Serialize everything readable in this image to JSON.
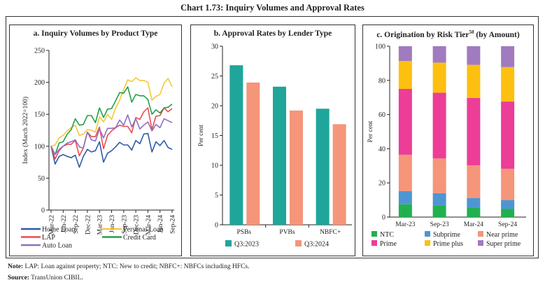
{
  "title": "Chart 1.73: Inquiry Volumes and Approval Rates",
  "note": {
    "label": "Note:",
    "text": " LAP: Loan against property; NTC: New to credit; NBFC+: NBFCs including HFCs."
  },
  "source": {
    "label": "Source:",
    "text": " TransUnion CIBIL."
  },
  "chart_data": [
    {
      "type": "line",
      "title": "a. Inquiry Volumes by Product Type",
      "xlabel": "",
      "ylabel": "Index (March 2022=100)",
      "ylim": [
        0,
        250
      ],
      "yticks": [
        0,
        50,
        100,
        150,
        200,
        250
      ],
      "x": [
        "Mar-22",
        "Apr-22",
        "May-22",
        "Jun-22",
        "Jul-22",
        "Aug-22",
        "Sep-22",
        "Oct-22",
        "Nov-22",
        "Dec-22",
        "Jan-23",
        "Feb-23",
        "Mar-23",
        "Apr-23",
        "May-23",
        "Jun-23",
        "Jul-23",
        "Aug-23",
        "Sep-23",
        "Oct-23",
        "Nov-23",
        "Dec-23",
        "Jan-24",
        "Feb-24",
        "Mar-24",
        "Apr-24",
        "May-24",
        "Jun-24",
        "Jul-24",
        "Aug-24",
        "Sep-24"
      ],
      "xtick_labels": [
        "Mar-22",
        "Jun-22",
        "Sep-22",
        "Dec-22",
        "Mar-23",
        "Jun-23",
        "Sep-23",
        "Dec-23",
        "Mar-24",
        "Jun-24",
        "Sep-24"
      ],
      "legend_position": "bottom",
      "series": [
        {
          "name": "Home Loan",
          "color": "#2e5aa8",
          "values": [
            100,
            72,
            84,
            87,
            84,
            82,
            86,
            67,
            84,
            95,
            91,
            93,
            107,
            75,
            89,
            93,
            99,
            106,
            102,
            102,
            94,
            109,
            104,
            119,
            120,
            91,
            107,
            101,
            109,
            98,
            95
          ]
        },
        {
          "name": "Personal Loan",
          "color": "#f5c83a",
          "values": [
            100,
            102,
            113,
            117,
            124,
            129,
            133,
            117,
            119,
            126,
            125,
            122,
            146,
            138,
            150,
            142,
            160,
            172,
            189,
            204,
            201,
            207,
            203,
            203,
            200,
            172,
            178,
            181,
            199,
            206,
            193
          ]
        },
        {
          "name": "LAP",
          "color": "#ee4a4f",
          "values": [
            100,
            80,
            93,
            100,
            103,
            103,
            109,
            85,
            97,
            122,
            115,
            115,
            130,
            96,
            117,
            124,
            129,
            133,
            131,
            131,
            121,
            145,
            142,
            154,
            160,
            126,
            147,
            148,
            160,
            154,
            159
          ]
        },
        {
          "name": "Credit Card",
          "color": "#22a04a",
          "values": [
            100,
            87,
            105,
            107,
            119,
            126,
            143,
            133,
            134,
            148,
            148,
            137,
            160,
            145,
            158,
            159,
            171,
            184,
            183,
            193,
            169,
            181,
            179,
            179,
            173,
            150,
            157,
            152,
            160,
            161,
            166
          ]
        },
        {
          "name": "Auto Loan",
          "color": "#8f6fbf",
          "values": [
            100,
            87,
            95,
            100,
            105,
            107,
            110,
            99,
            97,
            122,
            110,
            108,
            127,
            113,
            128,
            128,
            129,
            141,
            133,
            149,
            130,
            143,
            127,
            133,
            138,
            124,
            134,
            129,
            143,
            140,
            137
          ]
        }
      ]
    },
    {
      "type": "bar",
      "title": "b. Approval Rates by Lender Type",
      "xlabel": "",
      "ylabel": "Per cent",
      "ylim": [
        0,
        30
      ],
      "yticks": [
        0,
        5,
        10,
        15,
        20,
        25,
        30
      ],
      "categories": [
        "PSBs",
        "PVBs",
        "NBFC+"
      ],
      "legend_position": "bottom",
      "series": [
        {
          "name": "Q3:2023",
          "color": "#1fa59a",
          "values": [
            26.8,
            23.2,
            19.5
          ]
        },
        {
          "name": "Q3:2024",
          "color": "#f5957a",
          "values": [
            23.9,
            19.2,
            16.9
          ]
        }
      ]
    },
    {
      "type": "bar",
      "stacked": true,
      "title": "c. Origination by Risk Tier",
      "title_superscript": "50",
      "title_suffix": " (by Amount)",
      "xlabel": "",
      "ylabel": "Per cent",
      "ylim": [
        0,
        100
      ],
      "yticks": [
        0,
        20,
        40,
        60,
        80,
        100
      ],
      "categories": [
        "Mar-23",
        "Sep-23",
        "Mar-24",
        "Sep-24"
      ],
      "legend_position": "bottom",
      "series": [
        {
          "name": "NTC",
          "color": "#22b04e",
          "values": [
            7.5,
            6.8,
            5.5,
            4.9
          ]
        },
        {
          "name": "Subprime",
          "color": "#4e96d3",
          "values": [
            7.7,
            7.2,
            5.7,
            5.1
          ]
        },
        {
          "name": "Near prime",
          "color": "#f5957a",
          "values": [
            21.3,
            20.3,
            19.1,
            18.3
          ]
        },
        {
          "name": "Prime",
          "color": "#ec3d97",
          "values": [
            38.5,
            38.5,
            39.4,
            39.3
          ]
        },
        {
          "name": "Prime plus",
          "color": "#fdc010",
          "values": [
            16.3,
            17.6,
            19.4,
            20.2
          ]
        },
        {
          "name": "Super prime",
          "color": "#a07bbf",
          "values": [
            8.7,
            9.6,
            10.9,
            12.2
          ]
        }
      ]
    }
  ]
}
